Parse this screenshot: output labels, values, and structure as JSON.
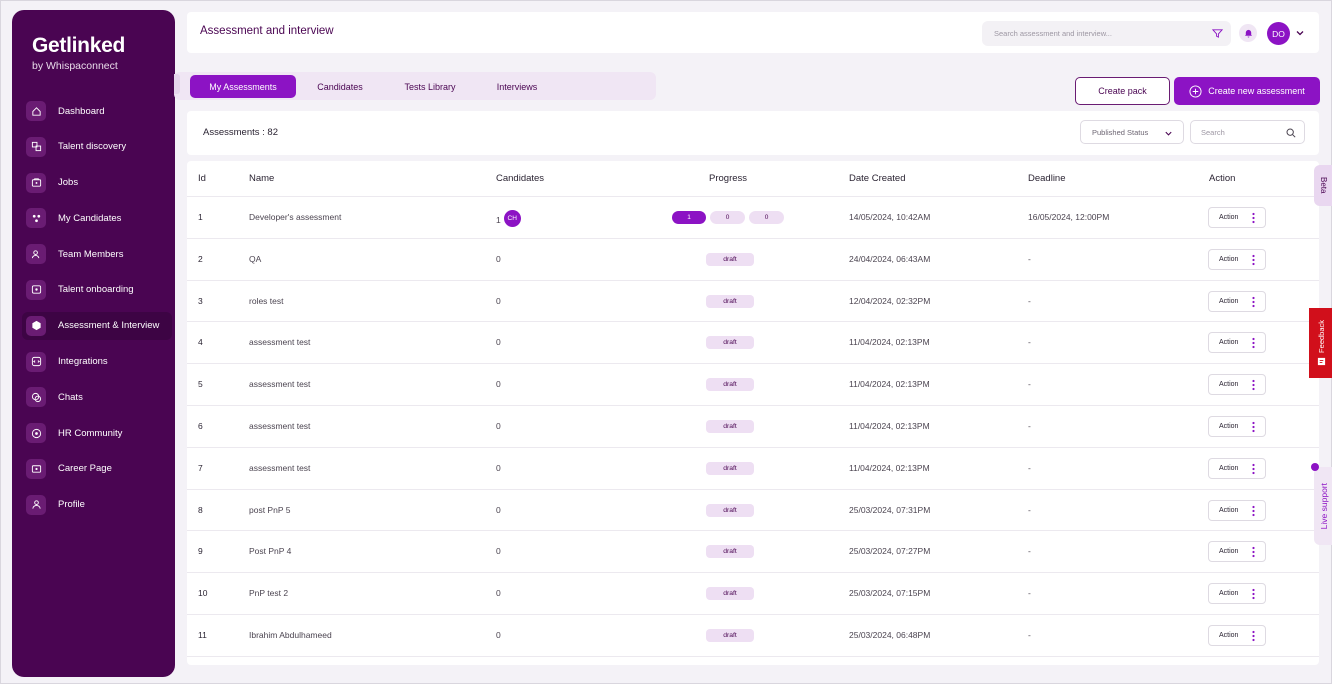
{
  "colors": {
    "brand": "#4a0552",
    "accent": "#8c13c4",
    "feedback": "#d10f1b"
  },
  "brand": {
    "name": "Getlinked",
    "sub": "by Whispaconnect"
  },
  "sidebar": {
    "items": [
      {
        "label": "Dashboard",
        "icon": "home-icon"
      },
      {
        "label": "Talent discovery",
        "icon": "discovery-icon"
      },
      {
        "label": "Jobs",
        "icon": "briefcase-icon"
      },
      {
        "label": "My Candidates",
        "icon": "candidates-icon"
      },
      {
        "label": "Team Members",
        "icon": "team-icon"
      },
      {
        "label": "Talent onboarding",
        "icon": "onboarding-icon"
      },
      {
        "label": "Assessment & Interview",
        "icon": "cube-icon",
        "active": true
      },
      {
        "label": "Integrations",
        "icon": "integrations-icon"
      },
      {
        "label": "Chats",
        "icon": "chat-icon"
      },
      {
        "label": "HR Community",
        "icon": "community-icon"
      },
      {
        "label": "Career Page",
        "icon": "career-icon"
      },
      {
        "label": "Profile",
        "icon": "user-icon"
      }
    ]
  },
  "header": {
    "title": "Assessment and interview",
    "search_placeholder": "Search assessment and interview...",
    "avatar": "DO"
  },
  "tabs": [
    "My Assessments",
    "Candidates",
    "Tests Library",
    "Interviews"
  ],
  "buttons": {
    "create_pack": "Create pack",
    "create_new": "Create new assessment"
  },
  "toolbar": {
    "count_label": "Assessments : 82",
    "status_select": "Published Status",
    "search_placeholder": "Search"
  },
  "table": {
    "columns": [
      "Id",
      "Name",
      "Candidates",
      "Progress",
      "Date Created",
      "Deadline",
      "Action"
    ],
    "rows": [
      {
        "id": "1",
        "name": "Developer's assessment",
        "candidates": "1",
        "candidate_avatar": "CH",
        "progress": [
          "1",
          "0",
          "0"
        ],
        "date": "14/05/2024, 10:42AM",
        "deadline": "16/05/2024, 12:00PM"
      },
      {
        "id": "2",
        "name": "QA",
        "candidates": "0",
        "status": "draft",
        "date": "24/04/2024, 06:43AM",
        "deadline": "-"
      },
      {
        "id": "3",
        "name": "roles test",
        "candidates": "0",
        "status": "draft",
        "date": "12/04/2024, 02:32PM",
        "deadline": "-"
      },
      {
        "id": "4",
        "name": "assessment test",
        "candidates": "0",
        "status": "draft",
        "date": "11/04/2024, 02:13PM",
        "deadline": "-"
      },
      {
        "id": "5",
        "name": "assessment test",
        "candidates": "0",
        "status": "draft",
        "date": "11/04/2024, 02:13PM",
        "deadline": "-"
      },
      {
        "id": "6",
        "name": "assessment test",
        "candidates": "0",
        "status": "draft",
        "date": "11/04/2024, 02:13PM",
        "deadline": "-"
      },
      {
        "id": "7",
        "name": "assessment test",
        "candidates": "0",
        "status": "draft",
        "date": "11/04/2024, 02:13PM",
        "deadline": "-"
      },
      {
        "id": "8",
        "name": "post PnP 5",
        "candidates": "0",
        "status": "draft",
        "date": "25/03/2024, 07:31PM",
        "deadline": "-"
      },
      {
        "id": "9",
        "name": "Post PnP 4",
        "candidates": "0",
        "status": "draft",
        "date": "25/03/2024, 07:27PM",
        "deadline": "-"
      },
      {
        "id": "10",
        "name": "PnP test 2",
        "candidates": "0",
        "status": "draft",
        "date": "25/03/2024, 07:15PM",
        "deadline": "-"
      },
      {
        "id": "11",
        "name": "Ibrahim Abdulhameed",
        "candidates": "0",
        "status": "draft",
        "date": "25/03/2024, 06:48PM",
        "deadline": "-"
      }
    ],
    "action_label": "Action"
  },
  "side_tabs": {
    "beta": "Beta",
    "feedback": "Feedback",
    "live": "Live support"
  }
}
